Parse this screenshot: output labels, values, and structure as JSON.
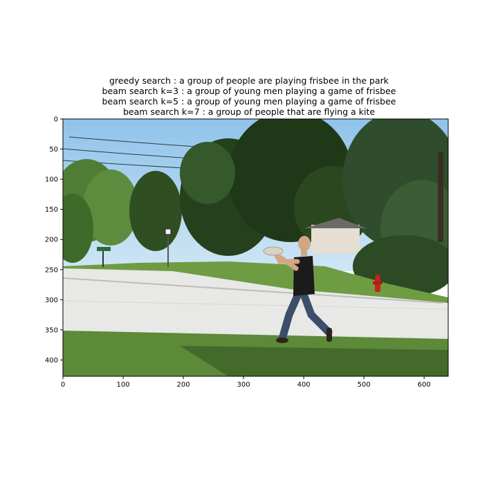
{
  "captions": [
    "greedy search : a group of people are playing frisbee in the park",
    "beam search k=3 :  a group of young men playing a game of frisbee",
    "beam search k=5 :  a group of young men playing a game of frisbee",
    "beam search k=7 :  a group of people that are flying a kite"
  ],
  "axes": {
    "x_range": [
      0,
      640
    ],
    "y_range": [
      0,
      427
    ],
    "x_ticks": [
      "0",
      "100",
      "200",
      "300",
      "400",
      "500",
      "600"
    ],
    "y_ticks": [
      "0",
      "50",
      "100",
      "150",
      "200",
      "250",
      "300",
      "350",
      "400"
    ]
  },
  "scene": {
    "description_icons": [
      "sky",
      "trees",
      "road",
      "grass",
      "man-throwing-frisbee-icon",
      "fire-hydrant-icon",
      "street-sign-icon"
    ],
    "colors": {
      "sky": "#a9d3f0",
      "tree_dark": "#1f3b1a",
      "tree_mid": "#3d6a2c",
      "tree_light": "#6f9e4a",
      "road": "#e9e9e7",
      "grass": "#5f8e3a",
      "shadow": "#3a5a26",
      "shirt": "#1b1b1b",
      "jeans": "#3b4d68",
      "skin": "#d2a684",
      "hydrant": "#c8201a"
    }
  }
}
